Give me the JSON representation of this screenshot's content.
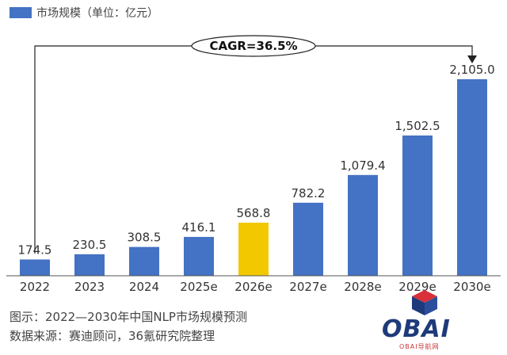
{
  "legend": {
    "label": "市场规模（单位：亿元）",
    "color": "#4472C4"
  },
  "annotation": {
    "text": "CAGR=36.5%"
  },
  "chart_data": {
    "type": "bar",
    "categories": [
      "2022",
      "2023",
      "2024",
      "2025e",
      "2026e",
      "2027e",
      "2028e",
      "2029e",
      "2030e"
    ],
    "values": [
      174.5,
      230.5,
      308.5,
      416.1,
      568.8,
      782.2,
      1079.4,
      1502.5,
      2105.0
    ],
    "value_labels": [
      "174.5",
      "230.5",
      "308.5",
      "416.1",
      "568.8",
      "782.2",
      "1,079.4",
      "1,502.5",
      "2,105.0"
    ],
    "series": [
      {
        "name": "市场规模（单位：亿元）",
        "values": [
          174.5,
          230.5,
          308.5,
          416.1,
          568.8,
          782.2,
          1079.4,
          1502.5,
          2105.0
        ]
      }
    ],
    "bar_color": "#4472C4",
    "highlight_color": "#F2C800",
    "highlight_index": 4,
    "ylim": [
      0,
      2105.0
    ],
    "grid": false,
    "legend_position": "top-left"
  },
  "captions": {
    "line1": "图示：2022—2030年中国NLP市场规模预测",
    "line2": "数据来源：赛迪顾问，36氪研究院整理"
  },
  "watermark": {
    "text": "OBAI",
    "subtext": "OBAI导航网"
  }
}
